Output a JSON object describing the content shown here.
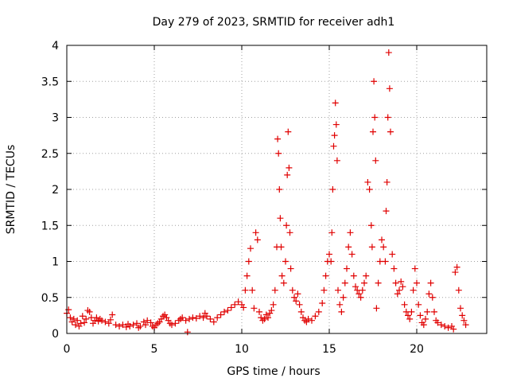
{
  "chart_data": {
    "type": "scatter",
    "title": "Day 279 of 2023, SRMTID for receiver adh1",
    "xlabel": "GPS time / hours",
    "ylabel": "SRMTID / TECUs",
    "xlim": [
      0,
      24
    ],
    "ylim": [
      0,
      4
    ],
    "x_ticks": [
      "0",
      "5",
      "10",
      "15",
      "20"
    ],
    "y_ticks": [
      "0",
      "0.5",
      "1",
      "1.5",
      "2",
      "2.5",
      "3",
      "3.5",
      "4"
    ],
    "grid": true,
    "marker": "+",
    "color": "#e00000",
    "series": [
      {
        "name": "SRMTID",
        "points": [
          [
            0.0,
            0.28
          ],
          [
            0.1,
            0.33
          ],
          [
            0.2,
            0.22
          ],
          [
            0.3,
            0.16
          ],
          [
            0.4,
            0.2
          ],
          [
            0.5,
            0.12
          ],
          [
            0.6,
            0.18
          ],
          [
            0.7,
            0.1
          ],
          [
            0.8,
            0.14
          ],
          [
            0.9,
            0.24
          ],
          [
            1.0,
            0.15
          ],
          [
            1.1,
            0.2
          ],
          [
            1.2,
            0.32
          ],
          [
            1.3,
            0.3
          ],
          [
            1.4,
            0.22
          ],
          [
            1.5,
            0.14
          ],
          [
            1.6,
            0.18
          ],
          [
            1.7,
            0.22
          ],
          [
            1.8,
            0.17
          ],
          [
            1.9,
            0.2
          ],
          [
            2.0,
            0.18
          ],
          [
            2.2,
            0.16
          ],
          [
            2.4,
            0.14
          ],
          [
            2.5,
            0.19
          ],
          [
            2.6,
            0.26
          ],
          [
            2.8,
            0.12
          ],
          [
            3.0,
            0.1
          ],
          [
            3.2,
            0.12
          ],
          [
            3.4,
            0.09
          ],
          [
            3.5,
            0.13
          ],
          [
            3.6,
            0.1
          ],
          [
            3.8,
            0.12
          ],
          [
            4.0,
            0.14
          ],
          [
            4.1,
            0.08
          ],
          [
            4.2,
            0.1
          ],
          [
            4.4,
            0.16
          ],
          [
            4.5,
            0.12
          ],
          [
            4.6,
            0.18
          ],
          [
            4.8,
            0.15
          ],
          [
            4.9,
            0.1
          ],
          [
            5.0,
            0.08
          ],
          [
            5.1,
            0.12
          ],
          [
            5.2,
            0.14
          ],
          [
            5.3,
            0.16
          ],
          [
            5.4,
            0.2
          ],
          [
            5.5,
            0.24
          ],
          [
            5.6,
            0.26
          ],
          [
            5.7,
            0.22
          ],
          [
            5.8,
            0.18
          ],
          [
            5.9,
            0.14
          ],
          [
            6.0,
            0.12
          ],
          [
            6.2,
            0.14
          ],
          [
            6.4,
            0.18
          ],
          [
            6.5,
            0.2
          ],
          [
            6.6,
            0.22
          ],
          [
            6.8,
            0.18
          ],
          [
            6.9,
            0.02
          ],
          [
            7.0,
            0.2
          ],
          [
            7.2,
            0.22
          ],
          [
            7.4,
            0.21
          ],
          [
            7.6,
            0.24
          ],
          [
            7.8,
            0.22
          ],
          [
            7.9,
            0.28
          ],
          [
            8.0,
            0.24
          ],
          [
            8.2,
            0.2
          ],
          [
            8.4,
            0.16
          ],
          [
            8.6,
            0.22
          ],
          [
            8.8,
            0.26
          ],
          [
            9.0,
            0.3
          ],
          [
            9.2,
            0.32
          ],
          [
            9.4,
            0.36
          ],
          [
            9.6,
            0.4
          ],
          [
            9.8,
            0.44
          ],
          [
            10.0,
            0.4
          ],
          [
            10.1,
            0.36
          ],
          [
            10.2,
            0.6
          ],
          [
            10.3,
            0.8
          ],
          [
            10.4,
            1.0
          ],
          [
            10.5,
            1.18
          ],
          [
            10.6,
            0.6
          ],
          [
            10.7,
            0.35
          ],
          [
            10.8,
            1.4
          ],
          [
            10.9,
            1.3
          ],
          [
            11.0,
            0.3
          ],
          [
            11.1,
            0.22
          ],
          [
            11.2,
            0.18
          ],
          [
            11.3,
            0.2
          ],
          [
            11.4,
            0.26
          ],
          [
            11.5,
            0.22
          ],
          [
            11.6,
            0.28
          ],
          [
            11.7,
            0.32
          ],
          [
            11.8,
            0.4
          ],
          [
            11.9,
            0.6
          ],
          [
            12.0,
            1.2
          ],
          [
            12.05,
            2.7
          ],
          [
            12.1,
            2.5
          ],
          [
            12.15,
            2.0
          ],
          [
            12.2,
            1.6
          ],
          [
            12.25,
            1.2
          ],
          [
            12.3,
            0.8
          ],
          [
            12.4,
            0.7
          ],
          [
            12.5,
            1.0
          ],
          [
            12.55,
            1.5
          ],
          [
            12.6,
            2.2
          ],
          [
            12.65,
            2.8
          ],
          [
            12.7,
            2.3
          ],
          [
            12.75,
            1.4
          ],
          [
            12.8,
            0.9
          ],
          [
            12.9,
            0.6
          ],
          [
            13.0,
            0.5
          ],
          [
            13.1,
            0.45
          ],
          [
            13.2,
            0.55
          ],
          [
            13.3,
            0.4
          ],
          [
            13.4,
            0.3
          ],
          [
            13.5,
            0.22
          ],
          [
            13.6,
            0.18
          ],
          [
            13.7,
            0.16
          ],
          [
            13.8,
            0.2
          ],
          [
            14.0,
            0.18
          ],
          [
            14.2,
            0.24
          ],
          [
            14.4,
            0.3
          ],
          [
            14.6,
            0.42
          ],
          [
            14.7,
            0.6
          ],
          [
            14.8,
            0.8
          ],
          [
            14.9,
            1.0
          ],
          [
            15.0,
            1.1
          ],
          [
            15.1,
            1.0
          ],
          [
            15.15,
            1.4
          ],
          [
            15.2,
            2.0
          ],
          [
            15.25,
            2.6
          ],
          [
            15.3,
            2.75
          ],
          [
            15.35,
            3.2
          ],
          [
            15.4,
            2.9
          ],
          [
            15.45,
            2.4
          ],
          [
            15.5,
            0.6
          ],
          [
            15.6,
            0.4
          ],
          [
            15.7,
            0.3
          ],
          [
            15.8,
            0.5
          ],
          [
            15.9,
            0.7
          ],
          [
            16.0,
            0.9
          ],
          [
            16.1,
            1.2
          ],
          [
            16.2,
            1.4
          ],
          [
            16.3,
            1.1
          ],
          [
            16.4,
            0.8
          ],
          [
            16.5,
            0.65
          ],
          [
            16.6,
            0.6
          ],
          [
            16.7,
            0.55
          ],
          [
            16.8,
            0.5
          ],
          [
            16.9,
            0.6
          ],
          [
            17.0,
            0.7
          ],
          [
            17.1,
            0.8
          ],
          [
            17.2,
            2.1
          ],
          [
            17.3,
            2.0
          ],
          [
            17.4,
            1.5
          ],
          [
            17.45,
            1.2
          ],
          [
            17.5,
            2.8
          ],
          [
            17.55,
            3.5
          ],
          [
            17.6,
            3.0
          ],
          [
            17.65,
            2.4
          ],
          [
            17.7,
            0.35
          ],
          [
            17.8,
            0.7
          ],
          [
            17.9,
            1.0
          ],
          [
            18.0,
            1.3
          ],
          [
            18.1,
            1.2
          ],
          [
            18.2,
            1.0
          ],
          [
            18.25,
            1.7
          ],
          [
            18.3,
            2.1
          ],
          [
            18.35,
            3.0
          ],
          [
            18.4,
            3.9
          ],
          [
            18.45,
            3.4
          ],
          [
            18.5,
            2.8
          ],
          [
            18.6,
            1.1
          ],
          [
            18.7,
            0.9
          ],
          [
            18.8,
            0.7
          ],
          [
            18.9,
            0.55
          ],
          [
            19.0,
            0.6
          ],
          [
            19.1,
            0.72
          ],
          [
            19.2,
            0.65
          ],
          [
            19.3,
            0.4
          ],
          [
            19.4,
            0.3
          ],
          [
            19.5,
            0.25
          ],
          [
            19.6,
            0.2
          ],
          [
            19.7,
            0.3
          ],
          [
            19.8,
            0.6
          ],
          [
            19.9,
            0.9
          ],
          [
            20.0,
            0.7
          ],
          [
            20.1,
            0.4
          ],
          [
            20.2,
            0.25
          ],
          [
            20.3,
            0.15
          ],
          [
            20.4,
            0.12
          ],
          [
            20.5,
            0.2
          ],
          [
            20.6,
            0.3
          ],
          [
            20.7,
            0.55
          ],
          [
            20.8,
            0.7
          ],
          [
            20.9,
            0.5
          ],
          [
            21.0,
            0.3
          ],
          [
            21.1,
            0.18
          ],
          [
            21.2,
            0.15
          ],
          [
            21.4,
            0.12
          ],
          [
            21.6,
            0.1
          ],
          [
            21.8,
            0.08
          ],
          [
            22.0,
            0.1
          ],
          [
            22.1,
            0.06
          ],
          [
            22.2,
            0.85
          ],
          [
            22.3,
            0.92
          ],
          [
            22.4,
            0.6
          ],
          [
            22.5,
            0.35
          ],
          [
            22.6,
            0.25
          ],
          [
            22.7,
            0.18
          ],
          [
            22.8,
            0.12
          ]
        ]
      }
    ]
  }
}
